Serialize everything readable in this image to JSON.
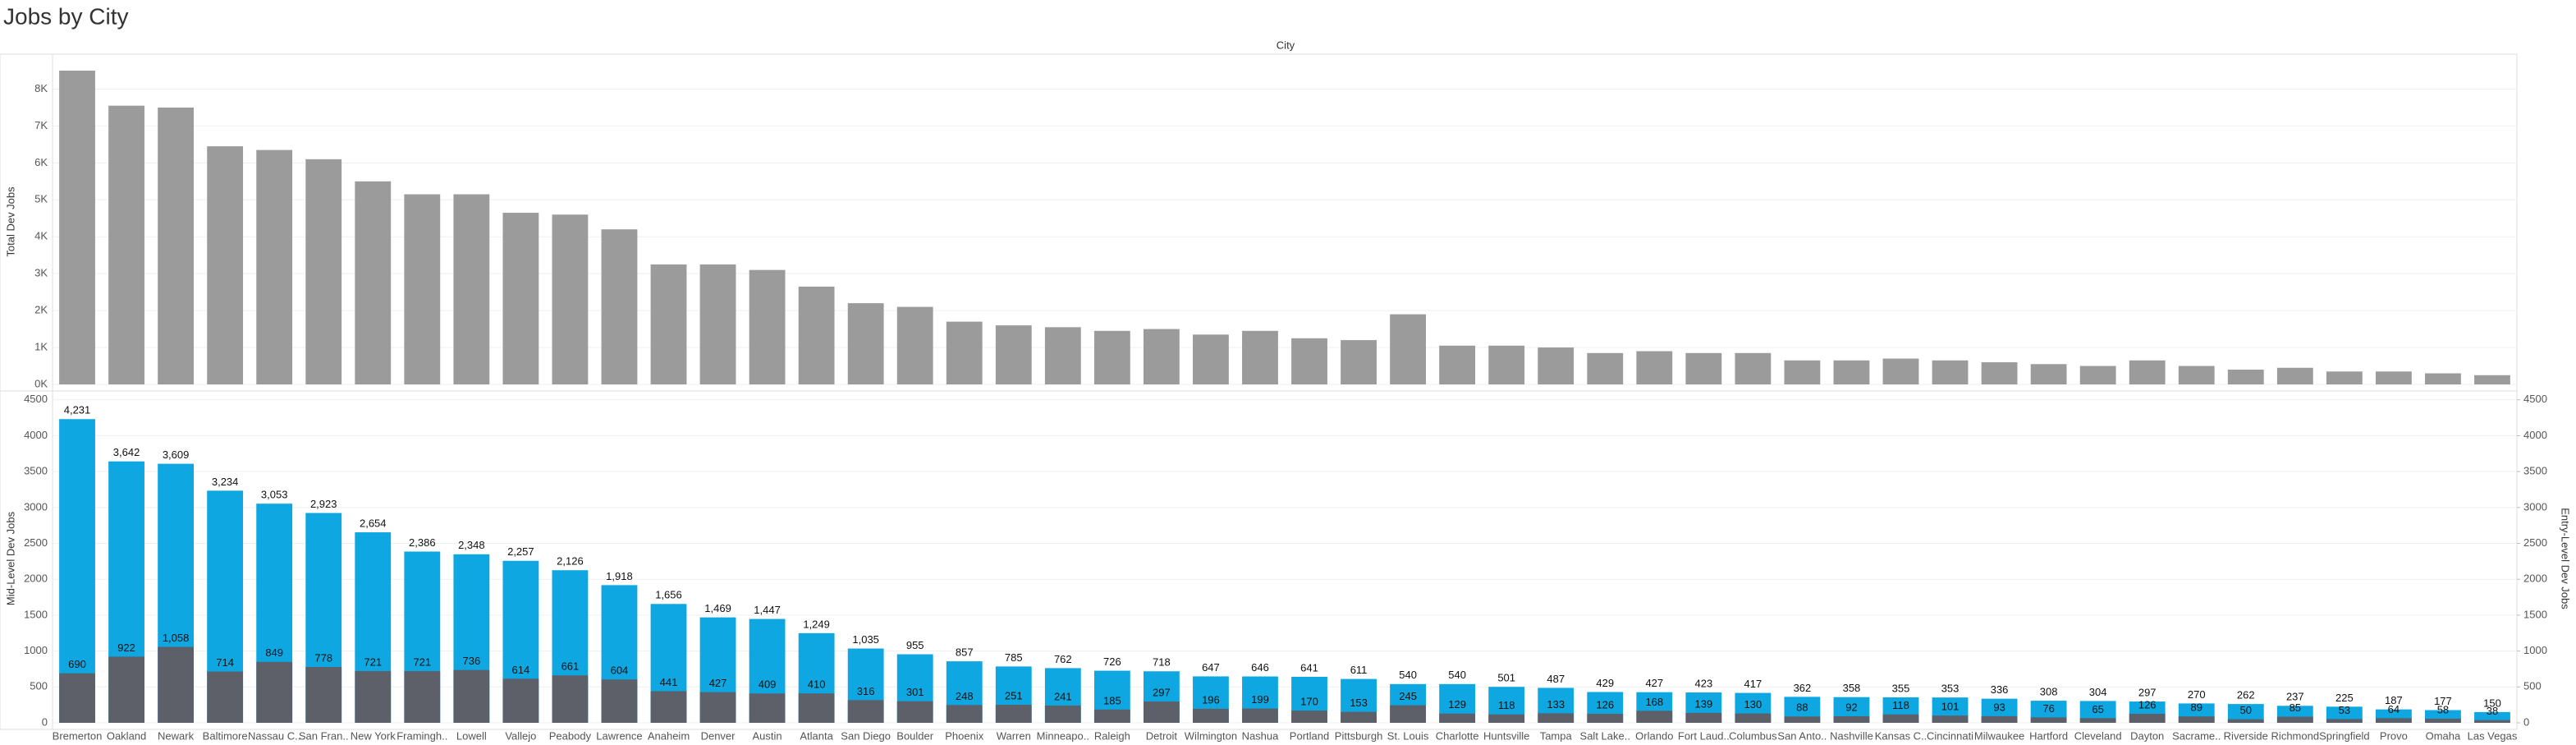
{
  "chart_data": [
    {
      "type": "bar",
      "title": "Jobs by City",
      "x_label": "City",
      "y_label": "Total Dev Jobs",
      "color": "#9b9b9b",
      "values": [
        8500,
        7550,
        7500,
        6450,
        6350,
        6100,
        5500,
        5150,
        5150,
        4650,
        4600,
        4200,
        3250,
        3250,
        3100,
        2650,
        2200,
        2100,
        1700,
        1600,
        1550,
        1450,
        1500,
        1350,
        1450,
        1250,
        1200,
        1900,
        1050,
        1050,
        1000,
        850,
        900,
        850,
        850,
        650,
        650,
        700,
        650,
        600,
        550,
        500,
        650,
        500,
        400,
        450,
        350,
        350,
        300,
        250
      ],
      "ylim": [
        0,
        8900
      ],
      "yticks": [
        {
          "value": 0,
          "label": "0K"
        },
        {
          "value": 1000,
          "label": "1K"
        },
        {
          "value": 2000,
          "label": "2K"
        },
        {
          "value": 3000,
          "label": "3K"
        },
        {
          "value": 4000,
          "label": "4K"
        },
        {
          "value": 5000,
          "label": "5K"
        },
        {
          "value": 6000,
          "label": "6K"
        },
        {
          "value": 7000,
          "label": "7K"
        },
        {
          "value": 8000,
          "label": "8K"
        }
      ],
      "grid": true
    },
    {
      "type": "overlay-bar",
      "categories": [
        "Bremerton",
        "Oakland",
        "Newark",
        "Baltimore",
        "Nassau C..",
        "San Fran..",
        "New York",
        "Framingh..",
        "Lowell",
        "Vallejo",
        "Peabody",
        "Lawrence",
        "Anaheim",
        "Denver",
        "Austin",
        "Atlanta",
        "San Diego",
        "Boulder",
        "Phoenix",
        "Warren",
        "Minneapo..",
        "Raleigh",
        "Detroit",
        "Wilmington",
        "Nashua",
        "Portland",
        "Pittsburgh",
        "St. Louis",
        "Charlotte",
        "Huntsville",
        "Tampa",
        "Salt Lake..",
        "Orlando",
        "Fort Laud..",
        "Columbus",
        "San Anto..",
        "Nashville",
        "Kansas C..",
        "Cincinnati",
        "Milwaukee",
        "Hartford",
        "Cleveland",
        "Dayton",
        "Sacrame..",
        "Riverside",
        "Richmond",
        "Springfield",
        "Provo",
        "Omaha",
        "Las Vegas"
      ],
      "series": [
        {
          "name": "Mid-Level Dev Jobs",
          "color": "#0ea7e1",
          "values": [
            4231,
            3642,
            3609,
            3234,
            3053,
            2923,
            2654,
            2386,
            2348,
            2257,
            2126,
            1918,
            1656,
            1469,
            1447,
            1249,
            1035,
            955,
            857,
            785,
            762,
            726,
            718,
            647,
            646,
            641,
            611,
            540,
            540,
            501,
            487,
            429,
            427,
            423,
            417,
            362,
            358,
            355,
            353,
            336,
            308,
            304,
            297,
            270,
            262,
            237,
            225,
            187,
            177,
            150
          ],
          "value_labels": [
            "4,231",
            "3,642",
            "3,609",
            "3,234",
            "3,053",
            "2,923",
            "2,654",
            "2,386",
            "2,348",
            "2,257",
            "2,126",
            "1,918",
            "1,656",
            "1,469",
            "1,447",
            "1,249",
            "1,035",
            "955",
            "857",
            "785",
            "762",
            "726",
            "718",
            "647",
            "646",
            "641",
            "611",
            "540",
            "540",
            "501",
            "487",
            "429",
            "427",
            "423",
            "417",
            "362",
            "358",
            "355",
            "353",
            "336",
            "308",
            "304",
            "297",
            "270",
            "262",
            "237",
            "225",
            "187",
            "177",
            "150"
          ]
        },
        {
          "name": "Entry-Level Dev Jobs",
          "color": "#5d6068",
          "axis": "y2",
          "values": [
            690,
            922,
            1058,
            714,
            849,
            778,
            721,
            721,
            736,
            614,
            661,
            604,
            441,
            427,
            409,
            410,
            316,
            301,
            248,
            251,
            241,
            185,
            297,
            196,
            199,
            170,
            153,
            245,
            129,
            118,
            133,
            126,
            168,
            139,
            130,
            88,
            92,
            118,
            101,
            93,
            76,
            65,
            126,
            89,
            50,
            85,
            53,
            64,
            58,
            38
          ],
          "value_labels": [
            "690",
            "922",
            "1,058",
            "714",
            "849",
            "778",
            "721",
            "721",
            "736",
            "614",
            "661",
            "604",
            "441",
            "427",
            "409",
            "410",
            "316",
            "301",
            "248",
            "251",
            "241",
            "185",
            "297",
            "196",
            "199",
            "170",
            "153",
            "245",
            "129",
            "118",
            "133",
            "126",
            "168",
            "139",
            "130",
            "88",
            "92",
            "118",
            "101",
            "93",
            "76",
            "65",
            "126",
            "89",
            "50",
            "85",
            "53",
            "64",
            "58",
            "38"
          ]
        }
      ],
      "ylim": [
        0,
        4600
      ],
      "yticks": [
        0,
        500,
        1000,
        1500,
        2000,
        2500,
        3000,
        3500,
        4000,
        4500
      ],
      "y2lim": [
        0,
        4600
      ],
      "y2ticks": [
        0,
        500,
        1000,
        1500,
        2000,
        2500,
        3000,
        3500,
        4000,
        4500
      ],
      "grid": true
    }
  ]
}
